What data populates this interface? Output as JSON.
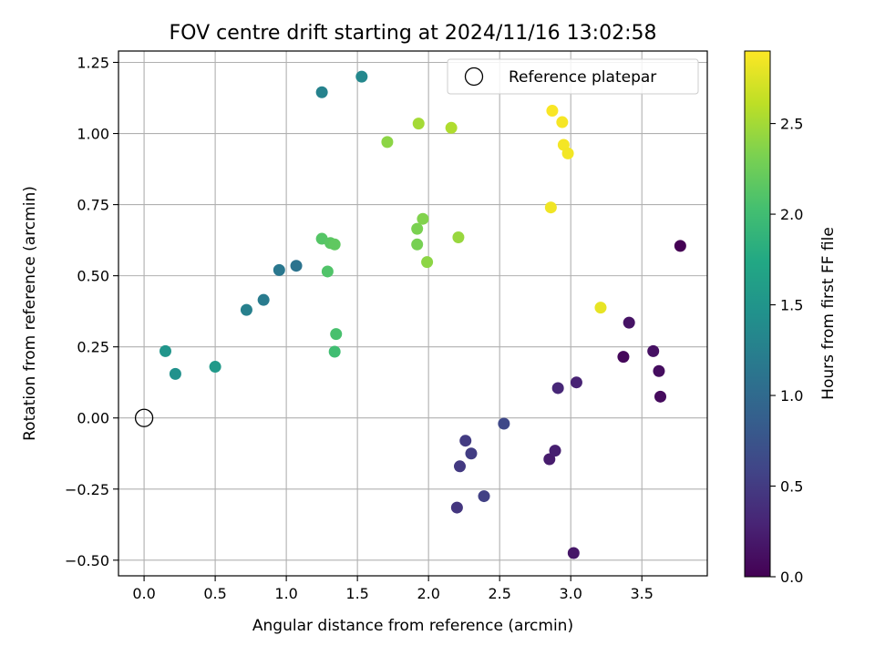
{
  "chart_data": {
    "type": "scatter",
    "title": "FOV centre drift starting at 2024/11/16 13:02:58",
    "xlabel": "Angular distance from reference (arcmin)",
    "ylabel": "Rotation from reference (arcmin)",
    "xlim": [
      -0.18,
      3.96
    ],
    "ylim": [
      -0.555,
      1.29
    ],
    "xticks": [
      0.0,
      0.5,
      1.0,
      1.5,
      2.0,
      2.5,
      3.0,
      3.5
    ],
    "xtick_labels": [
      "0.0",
      "0.5",
      "1.0",
      "1.5",
      "2.0",
      "2.5",
      "3.0",
      "3.5"
    ],
    "yticks": [
      -0.5,
      -0.25,
      0.0,
      0.25,
      0.5,
      0.75,
      1.0,
      1.25
    ],
    "ytick_labels": [
      "−0.50",
      "−0.25",
      "0.00",
      "0.25",
      "0.50",
      "0.75",
      "1.00",
      "1.25"
    ],
    "grid": true,
    "colormap": "viridis",
    "colorbar": {
      "label": "Hours from first FF file",
      "range": [
        0.0,
        2.9
      ],
      "ticks": [
        0.0,
        0.5,
        1.0,
        1.5,
        2.0,
        2.5
      ],
      "tick_labels": [
        "0.0",
        "0.5",
        "1.0",
        "1.5",
        "2.0",
        "2.5"
      ]
    },
    "legend": {
      "placement": "top-right",
      "entries": [
        {
          "label": "Reference platepar",
          "marker": "open-circle",
          "x": 0.0,
          "y": 0.0
        }
      ]
    },
    "points": [
      {
        "x": 3.77,
        "y": 0.605,
        "c": 0.0
      },
      {
        "x": 3.37,
        "y": 0.215,
        "c": 0.05
      },
      {
        "x": 3.63,
        "y": 0.075,
        "c": 0.08
      },
      {
        "x": 3.62,
        "y": 0.165,
        "c": 0.1
      },
      {
        "x": 3.58,
        "y": 0.235,
        "c": 0.13
      },
      {
        "x": 3.41,
        "y": 0.335,
        "c": 0.15
      },
      {
        "x": 3.02,
        "y": -0.475,
        "c": 0.18
      },
      {
        "x": 2.85,
        "y": -0.145,
        "c": 0.22
      },
      {
        "x": 2.89,
        "y": -0.115,
        "c": 0.25
      },
      {
        "x": 3.04,
        "y": 0.125,
        "c": 0.28
      },
      {
        "x": 2.91,
        "y": 0.105,
        "c": 0.32
      },
      {
        "x": 2.53,
        "y": -0.02,
        "c": 0.62
      },
      {
        "x": 2.39,
        "y": -0.275,
        "c": 0.55
      },
      {
        "x": 2.3,
        "y": -0.125,
        "c": 0.52
      },
      {
        "x": 2.26,
        "y": -0.08,
        "c": 0.5
      },
      {
        "x": 2.22,
        "y": -0.17,
        "c": 0.48
      },
      {
        "x": 2.2,
        "y": -0.315,
        "c": 0.45
      },
      {
        "x": 1.53,
        "y": 1.2,
        "c": 1.35
      },
      {
        "x": 1.25,
        "y": 1.145,
        "c": 1.28
      },
      {
        "x": 1.07,
        "y": 0.535,
        "c": 1.1
      },
      {
        "x": 0.95,
        "y": 0.52,
        "c": 1.15
      },
      {
        "x": 0.84,
        "y": 0.415,
        "c": 1.2
      },
      {
        "x": 0.72,
        "y": 0.38,
        "c": 1.25
      },
      {
        "x": 0.5,
        "y": 0.18,
        "c": 1.55
      },
      {
        "x": 0.15,
        "y": 0.235,
        "c": 1.5
      },
      {
        "x": 0.22,
        "y": 0.155,
        "c": 1.45
      },
      {
        "x": 1.35,
        "y": 0.295,
        "c": 2.05
      },
      {
        "x": 1.34,
        "y": 0.233,
        "c": 2.0
      },
      {
        "x": 1.29,
        "y": 0.515,
        "c": 2.1
      },
      {
        "x": 1.25,
        "y": 0.63,
        "c": 2.12
      },
      {
        "x": 1.31,
        "y": 0.615,
        "c": 2.15
      },
      {
        "x": 1.34,
        "y": 0.61,
        "c": 2.18
      },
      {
        "x": 1.92,
        "y": 0.61,
        "c": 2.3
      },
      {
        "x": 1.92,
        "y": 0.665,
        "c": 2.32
      },
      {
        "x": 1.96,
        "y": 0.7,
        "c": 2.35
      },
      {
        "x": 1.99,
        "y": 0.548,
        "c": 2.4
      },
      {
        "x": 2.21,
        "y": 0.635,
        "c": 2.45
      },
      {
        "x": 1.71,
        "y": 0.97,
        "c": 2.4
      },
      {
        "x": 1.93,
        "y": 1.035,
        "c": 2.5
      },
      {
        "x": 2.16,
        "y": 1.02,
        "c": 2.55
      },
      {
        "x": 2.87,
        "y": 1.08,
        "c": 2.88
      },
      {
        "x": 2.94,
        "y": 1.04,
        "c": 2.87
      },
      {
        "x": 2.95,
        "y": 0.96,
        "c": 2.86
      },
      {
        "x": 2.98,
        "y": 0.93,
        "c": 2.85
      },
      {
        "x": 2.86,
        "y": 0.74,
        "c": 2.84
      },
      {
        "x": 3.21,
        "y": 0.388,
        "c": 2.8
      }
    ]
  }
}
